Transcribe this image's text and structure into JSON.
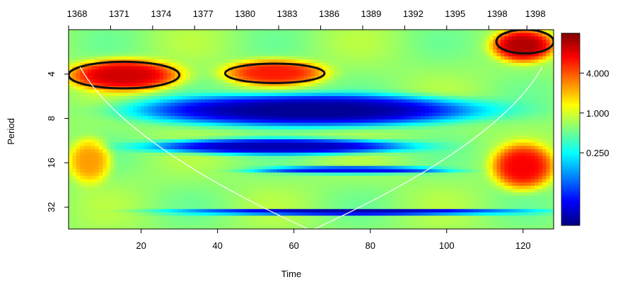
{
  "chart_data": {
    "type": "heatmap",
    "title": "",
    "xlabel": "Time",
    "ylabel": "Period",
    "xlim": [
      1,
      128
    ],
    "ylim": [
      2,
      45
    ],
    "y_scale": "log2",
    "y_reversed": true,
    "x_ticks": [
      20,
      40,
      60,
      80,
      100,
      120
    ],
    "x_tick_labels": [
      "20",
      "40",
      "60",
      "80",
      "100",
      "120"
    ],
    "top_axis": {
      "ticks": [
        1,
        12,
        23,
        34,
        45,
        56,
        67,
        78,
        89,
        100,
        111,
        121
      ],
      "labels": [
        "1368",
        "1371",
        "1374",
        "1377",
        "1380",
        "1383",
        "1386",
        "1389",
        "1392",
        "1395",
        "1398",
        "1398"
      ]
    },
    "y_ticks": [
      4,
      8,
      16,
      32
    ],
    "y_tick_labels": [
      "4",
      "8",
      "16",
      "32"
    ],
    "colorbar": {
      "labels": [
        "4.000",
        "1.000",
        "0.250"
      ],
      "values": [
        4,
        1,
        0.25
      ],
      "range": [
        0.02,
        16
      ],
      "scale": "log",
      "colors": [
        "#00007F",
        "#0000FF",
        "#007FFF",
        "#00FFFF",
        "#7FFF7F",
        "#FFFF00",
        "#FF7F00",
        "#FF0000",
        "#7F0000"
      ]
    },
    "power_features": [
      {
        "label": "high",
        "x": [
          1,
          30
        ],
        "period": [
          3.2,
          5.2
        ],
        "level": 0.92
      },
      {
        "label": "high",
        "x": [
          42,
          68
        ],
        "period": [
          3.2,
          4.8
        ],
        "level": 0.85
      },
      {
        "label": "high",
        "x": [
          112,
          128
        ],
        "period": [
          12,
          24
        ],
        "level": 0.88
      },
      {
        "label": "high",
        "x": [
          112,
          128
        ],
        "period": [
          2,
          3.3
        ],
        "level": 0.95
      },
      {
        "label": "high",
        "x": [
          1,
          12
        ],
        "period": [
          11,
          22
        ],
        "level": 0.72
      },
      {
        "label": "low",
        "x": [
          20,
          108
        ],
        "period": [
          5.5,
          9
        ],
        "level": 0.02
      },
      {
        "label": "low",
        "x": [
          22,
          90
        ],
        "period": [
          11,
          14
        ],
        "level": 0.05
      },
      {
        "label": "low",
        "x": [
          28,
          122
        ],
        "period": [
          33,
          36
        ],
        "level": 0.03
      },
      {
        "label": "low",
        "x": [
          50,
          100
        ],
        "period": [
          17,
          19
        ],
        "level": 0.12
      }
    ],
    "significance_regions": [
      {
        "x": [
          1,
          30
        ],
        "period": [
          3.3,
          5.0
        ]
      },
      {
        "x": [
          42,
          68
        ],
        "period": [
          3.4,
          4.6
        ]
      },
      {
        "x": [
          113,
          128
        ],
        "period": [
          2.0,
          2.9
        ]
      }
    ],
    "cone_of_influence": true,
    "legend": "none",
    "grid": false
  }
}
